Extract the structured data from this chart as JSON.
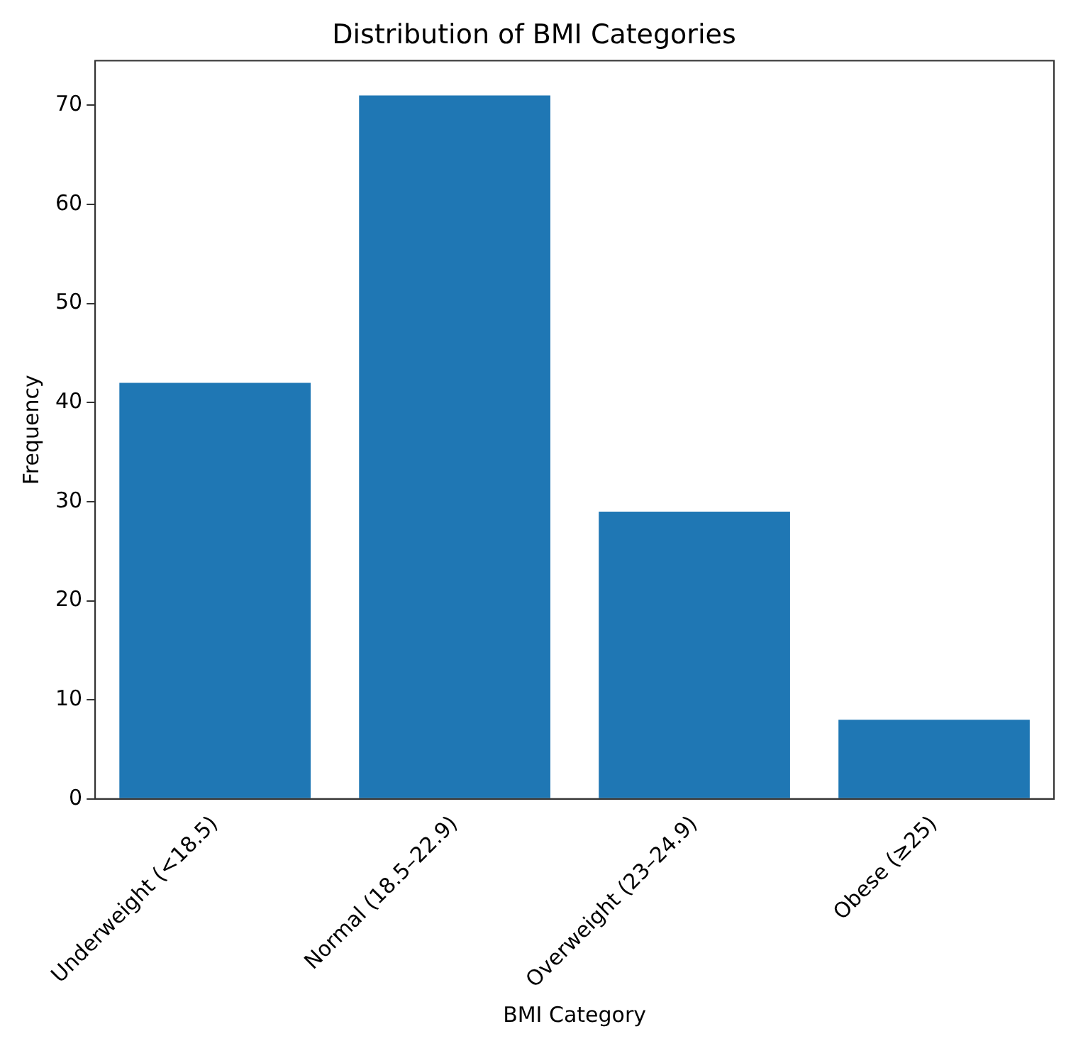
{
  "chart_data": {
    "type": "bar",
    "title": "Distribution of BMI Categories",
    "xlabel": "BMI Category",
    "ylabel": "Frequency",
    "categories": [
      "Underweight (<18.5)",
      "Normal (18.5–22.9)",
      "Overweight (23–24.9)",
      "Obese (≥25)"
    ],
    "values": [
      42,
      71,
      29,
      8
    ],
    "color": "#1f77b4",
    "ylim": [
      0,
      74.5
    ],
    "yticks": [
      0,
      10,
      20,
      30,
      40,
      50,
      60,
      70
    ],
    "grid": false,
    "legend": false
  }
}
